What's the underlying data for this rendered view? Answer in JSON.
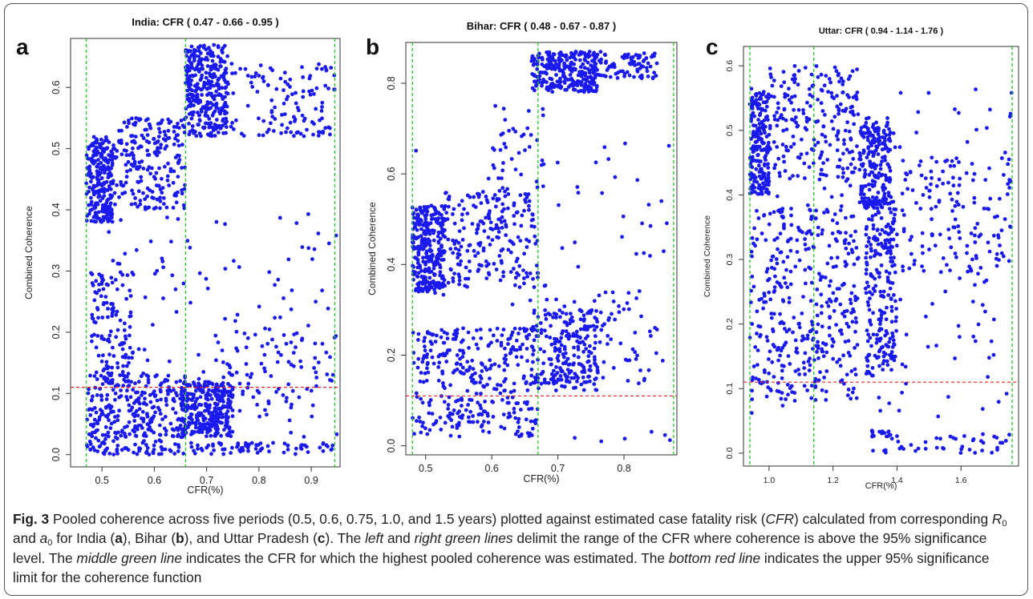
{
  "figure": {
    "caption": {
      "label": "Fig. 3",
      "t1": " Pooled coherence across five periods (0.5, 0.6, 0.75, 1.0, and 1.5 years) plotted against estimated case fatality risk (",
      "cfr_abbr": "CFR",
      "t2": ") calculated from corresponding ",
      "r0_main": "R",
      "r0_sub": "0",
      "t3": " and ",
      "a0_main": "a",
      "a0_sub": "0",
      "t4": " for India (",
      "panel_a": "a",
      "t5": "), Bihar (",
      "panel_b": "b",
      "t6": "), and Uttar Pradesh (",
      "panel_c": "c",
      "t7": "). The ",
      "left_right": "left",
      "t8": " and ",
      "right_green": "right green lines",
      "t9": " delimit the range of the CFR where coherence is above the 95% significance level. The ",
      "middle_green": "middle green line",
      "t10": " indicates the CFR for which the highest pooled coherence was estimated. The ",
      "bottom_red": "bottom red line",
      "t11": " indicates the upper 95% significance limit for the coherence function"
    },
    "colors": {
      "points": "#1a1aee",
      "green_lines": "#22c422",
      "red_line": "#ee2222",
      "axis": "#333333"
    }
  },
  "chart_data": [
    {
      "type": "scatter",
      "panel_label": "a",
      "title": "India: CFR ( 0.47 - 0.66 - 0.95 )",
      "xlabel": "CFR(%)",
      "ylabel": "Combined Coherence",
      "xlim": [
        0.44,
        0.955
      ],
      "ylim": [
        -0.02,
        0.68
      ],
      "xticks": [
        0.5,
        0.6,
        0.7,
        0.8,
        0.9
      ],
      "yticks": [
        0.0,
        0.1,
        0.2,
        0.3,
        0.4,
        0.5,
        0.6
      ],
      "vlines": [
        0.47,
        0.66,
        0.945
      ],
      "hline": 0.11,
      "clusters": [
        {
          "x": [
            0.47,
            0.52
          ],
          "y": [
            0.38,
            0.52
          ],
          "n": 240
        },
        {
          "x": [
            0.52,
            0.66
          ],
          "y": [
            0.4,
            0.55
          ],
          "n": 220
        },
        {
          "x": [
            0.47,
            0.66
          ],
          "y": [
            0.0,
            0.13
          ],
          "n": 320
        },
        {
          "x": [
            0.48,
            0.56
          ],
          "y": [
            0.12,
            0.3
          ],
          "n": 120
        },
        {
          "x": [
            0.47,
            0.95
          ],
          "y": [
            0.0,
            0.4
          ],
          "n": 130
        },
        {
          "x": [
            0.66,
            0.74
          ],
          "y": [
            0.52,
            0.67
          ],
          "n": 300
        },
        {
          "x": [
            0.7,
            0.95
          ],
          "y": [
            0.52,
            0.64
          ],
          "n": 150
        },
        {
          "x": [
            0.65,
            0.75
          ],
          "y": [
            0.03,
            0.12
          ],
          "n": 300
        },
        {
          "x": [
            0.67,
            0.95
          ],
          "y": [
            0.0,
            0.02
          ],
          "n": 70
        },
        {
          "x": [
            0.7,
            0.95
          ],
          "y": [
            0.08,
            0.2
          ],
          "n": 80
        }
      ]
    },
    {
      "type": "scatter",
      "panel_label": "b",
      "title": "Bihar: CFR ( 0.48 - 0.67 - 0.87 )",
      "xlabel": "CFR(%)",
      "ylabel": "Combined Coherence",
      "xlim": [
        0.47,
        0.88
      ],
      "ylim": [
        -0.02,
        0.89
      ],
      "xticks": [
        0.5,
        0.6,
        0.7,
        0.8
      ],
      "yticks": [
        0.0,
        0.2,
        0.4,
        0.6,
        0.8
      ],
      "vlines": [
        0.48,
        0.67,
        0.875
      ],
      "hline": 0.11,
      "clusters": [
        {
          "x": [
            0.48,
            0.53
          ],
          "y": [
            0.34,
            0.53
          ],
          "n": 300
        },
        {
          "x": [
            0.53,
            0.67
          ],
          "y": [
            0.35,
            0.56
          ],
          "n": 200
        },
        {
          "x": [
            0.48,
            0.67
          ],
          "y": [
            0.02,
            0.26
          ],
          "n": 320
        },
        {
          "x": [
            0.6,
            0.68
          ],
          "y": [
            0.55,
            0.75
          ],
          "n": 40
        },
        {
          "x": [
            0.66,
            0.76
          ],
          "y": [
            0.78,
            0.87
          ],
          "n": 280
        },
        {
          "x": [
            0.76,
            0.85
          ],
          "y": [
            0.81,
            0.87
          ],
          "n": 80
        },
        {
          "x": [
            0.66,
            0.76
          ],
          "y": [
            0.12,
            0.3
          ],
          "n": 200
        },
        {
          "x": [
            0.68,
            0.85
          ],
          "y": [
            0.14,
            0.34
          ],
          "n": 70
        },
        {
          "x": [
            0.48,
            0.87
          ],
          "y": [
            0.0,
            0.7
          ],
          "n": 90
        }
      ]
    },
    {
      "type": "scatter",
      "panel_label": "c",
      "title": "Uttar: CFR ( 0.94 - 1.14 - 1.76 )",
      "xlabel": "CFR(%)",
      "ylabel": "Combined Coherence",
      "xlim": [
        0.92,
        1.78
      ],
      "ylim": [
        -0.02,
        0.63
      ],
      "xticks": [
        1.0,
        1.2,
        1.4,
        1.6
      ],
      "yticks": [
        0.0,
        0.1,
        0.2,
        0.3,
        0.4,
        0.5,
        0.6
      ],
      "vlines": [
        0.94,
        1.14,
        1.76
      ],
      "hline": 0.11,
      "clusters": [
        {
          "x": [
            0.94,
            1.0
          ],
          "y": [
            0.4,
            0.56
          ],
          "n": 200
        },
        {
          "x": [
            1.0,
            1.28
          ],
          "y": [
            0.42,
            0.6
          ],
          "n": 200
        },
        {
          "x": [
            0.94,
            1.28
          ],
          "y": [
            0.08,
            0.38
          ],
          "n": 360
        },
        {
          "x": [
            1.28,
            1.38
          ],
          "y": [
            0.38,
            0.52
          ],
          "n": 200
        },
        {
          "x": [
            1.3,
            1.4
          ],
          "y": [
            0.12,
            0.4
          ],
          "n": 230
        },
        {
          "x": [
            1.4,
            1.76
          ],
          "y": [
            0.28,
            0.46
          ],
          "n": 130
        },
        {
          "x": [
            1.3,
            1.76
          ],
          "y": [
            0.0,
            0.03
          ],
          "n": 45
        },
        {
          "x": [
            1.32,
            1.38
          ],
          "y": [
            0.025,
            0.035
          ],
          "n": 15
        },
        {
          "x": [
            0.94,
            1.76
          ],
          "y": [
            0.05,
            0.58
          ],
          "n": 150
        }
      ]
    }
  ]
}
